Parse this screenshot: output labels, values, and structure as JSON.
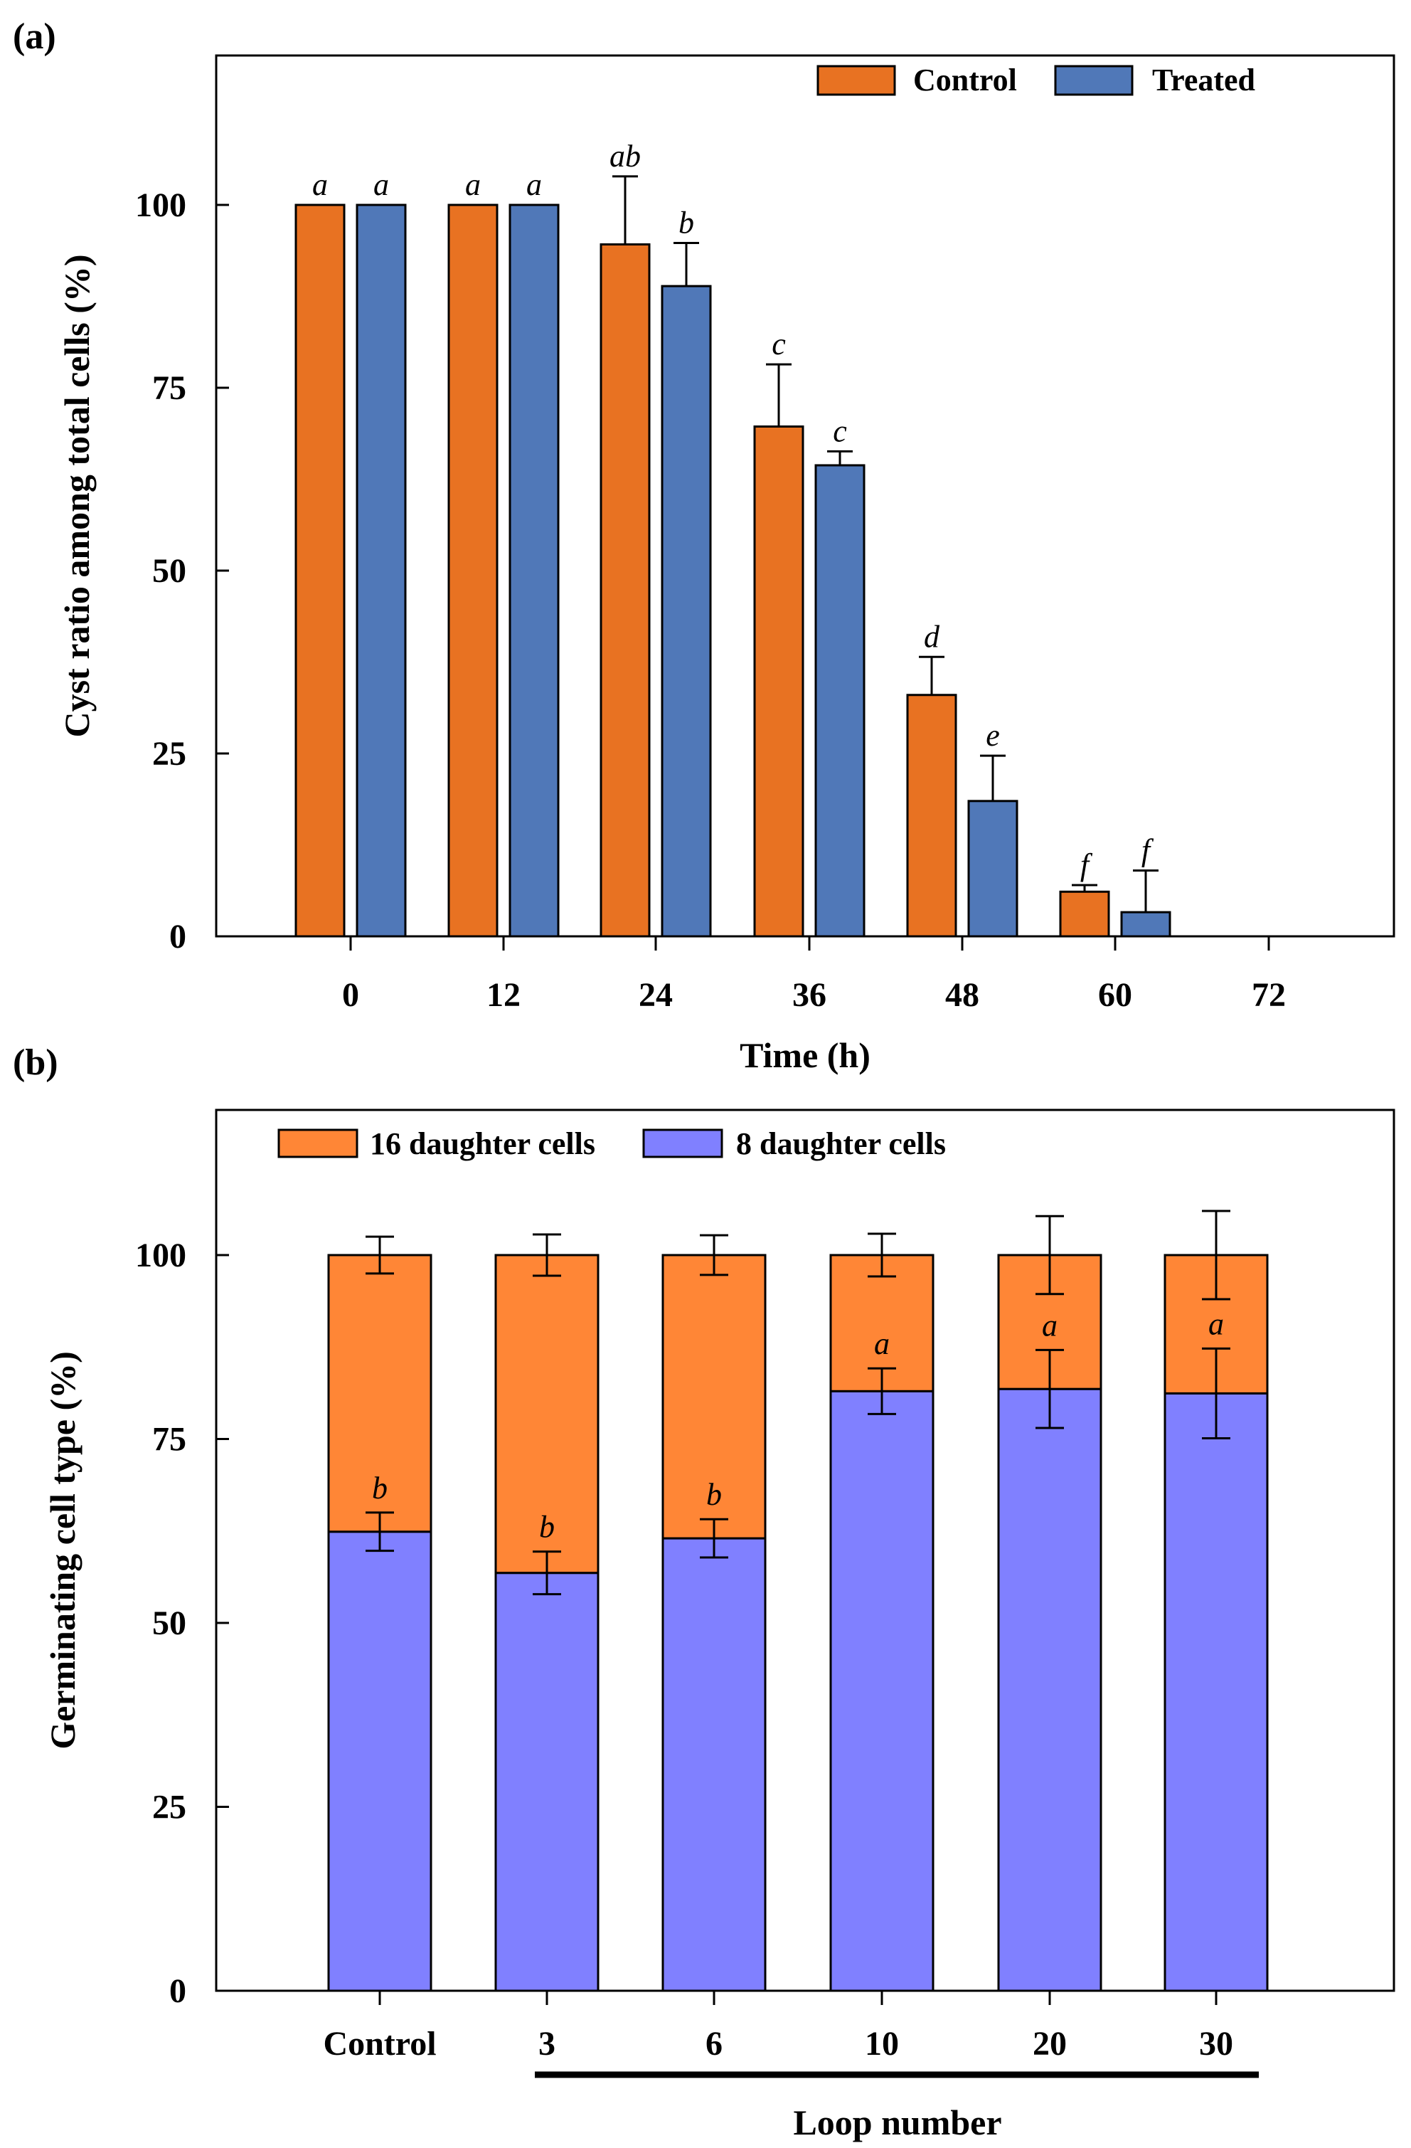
{
  "panels": {
    "a": {
      "label": "(a)"
    },
    "b": {
      "label": "(b)",
      "group_label": "Loop number"
    }
  },
  "colors": {
    "control": "#E87222",
    "treated": "#5078B8",
    "sixteen": "#FF8636",
    "eight": "#8080FF"
  },
  "chart_data": [
    {
      "type": "bar",
      "panel": "(a)",
      "title": "",
      "xlabel": "Time (h)",
      "ylabel": "Cyst ratio among total cells (%)",
      "ylim": [
        0,
        100
      ],
      "yticks": [
        "0",
        "25",
        "50",
        "75",
        "100"
      ],
      "categories": [
        "0",
        "12",
        "24",
        "36",
        "48",
        "60",
        "72"
      ],
      "legend_position": "top-right",
      "series": [
        {
          "name": "Control",
          "color": "#E87222",
          "values": [
            100,
            100,
            94.6,
            69.7,
            33.0,
            6.1,
            0
          ],
          "errors": [
            0,
            0,
            9.3,
            8.5,
            5.2,
            0.9,
            0
          ],
          "letters": [
            "a",
            "a",
            "ab",
            "c",
            "d",
            "f",
            ""
          ]
        },
        {
          "name": "Treated",
          "color": "#5078B8",
          "values": [
            100,
            100,
            88.9,
            64.4,
            18.5,
            3.3,
            0
          ],
          "errors": [
            0,
            0,
            5.9,
            1.9,
            6.2,
            5.7,
            0
          ],
          "letters": [
            "a",
            "a",
            "b",
            "c",
            "e",
            "f",
            ""
          ]
        }
      ]
    },
    {
      "type": "bar",
      "stacked": true,
      "panel": "(b)",
      "title": "",
      "xlabel": "Loop number",
      "ylabel": "Germinating cell type (%)",
      "ylim": [
        0,
        100
      ],
      "yticks": [
        "0",
        "25",
        "50",
        "75",
        "100"
      ],
      "categories": [
        "Control",
        "3",
        "6",
        "10",
        "20",
        "30"
      ],
      "legend_position": "top-left",
      "series": [
        {
          "name": "8 daughter cells",
          "color": "#8080FF",
          "values": [
            62.4,
            56.8,
            61.5,
            81.5,
            81.8,
            81.2
          ],
          "errors": [
            2.6,
            2.9,
            2.6,
            3.1,
            5.3,
            6.1
          ],
          "letters": [
            "b",
            "b",
            "b",
            "a",
            "a",
            "a"
          ]
        },
        {
          "name": "16 daughter cells",
          "color": "#FF8636",
          "values": [
            37.6,
            43.2,
            38.5,
            18.5,
            18.2,
            18.8
          ],
          "totals_errors": [
            2.5,
            2.8,
            2.7,
            2.9,
            5.3,
            6.0
          ]
        }
      ]
    }
  ]
}
